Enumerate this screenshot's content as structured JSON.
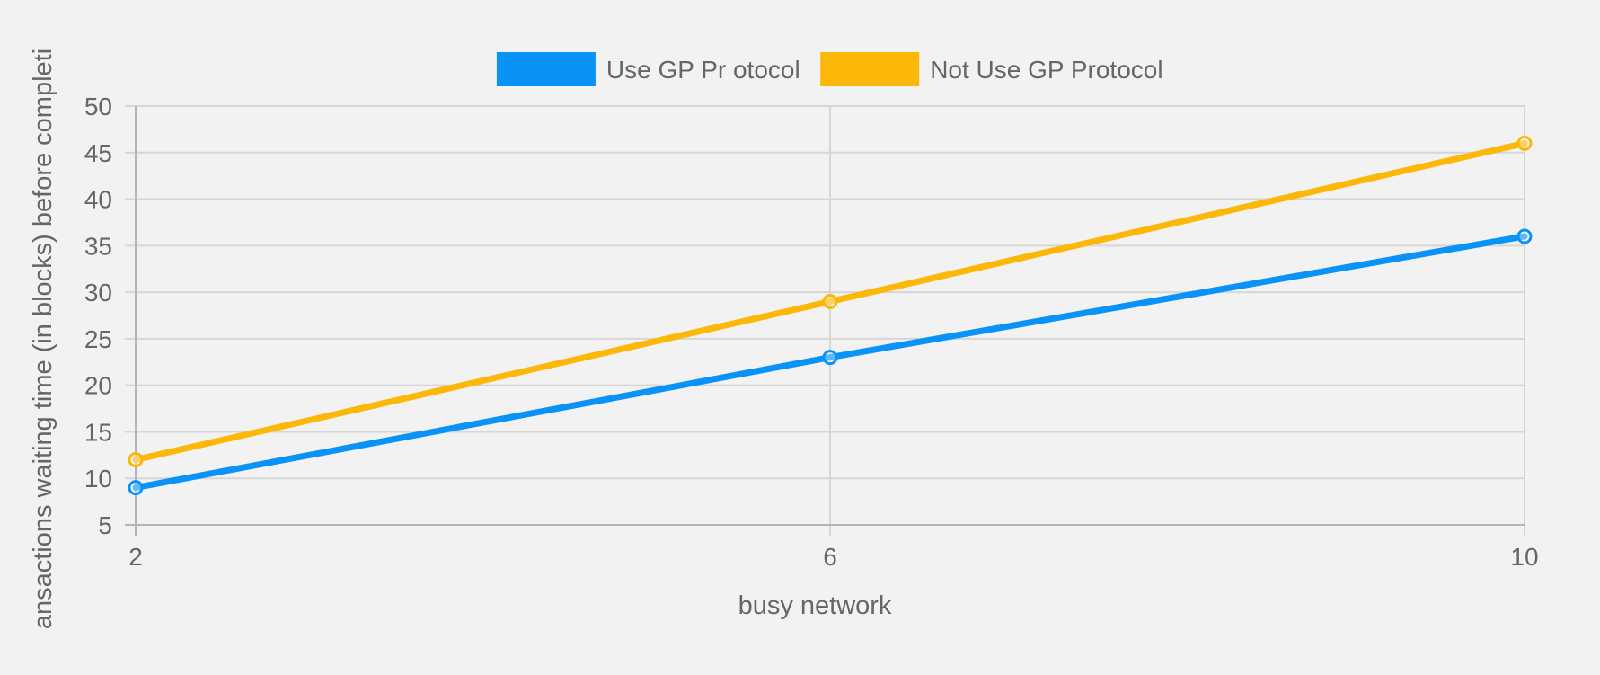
{
  "chart_data": {
    "type": "line",
    "title": "",
    "xlabel": "busy network",
    "ylabel": "ansactions waiting time (in blocks) before completi",
    "x": [
      2,
      6,
      10
    ],
    "x_ticks": [
      "2",
      "6",
      "10"
    ],
    "xlim": [
      2,
      10
    ],
    "y_ticks": [
      "5",
      "10",
      "15",
      "20",
      "25",
      "30",
      "35",
      "40",
      "45",
      "50"
    ],
    "ylim": [
      5,
      50
    ],
    "grid": true,
    "legend_position": "top-center",
    "series": [
      {
        "name": "Use GP Pr otocol",
        "color": "#0a93f7",
        "values": [
          9,
          23,
          36
        ]
      },
      {
        "name": "Not Use GP Protocol",
        "color": "#fbb808",
        "values": [
          12,
          29,
          46
        ]
      }
    ]
  },
  "colors": {
    "background": "#f2f2f2",
    "grid": "#d6d6d6",
    "axis": "#b4b4b4",
    "text": "#666666"
  }
}
